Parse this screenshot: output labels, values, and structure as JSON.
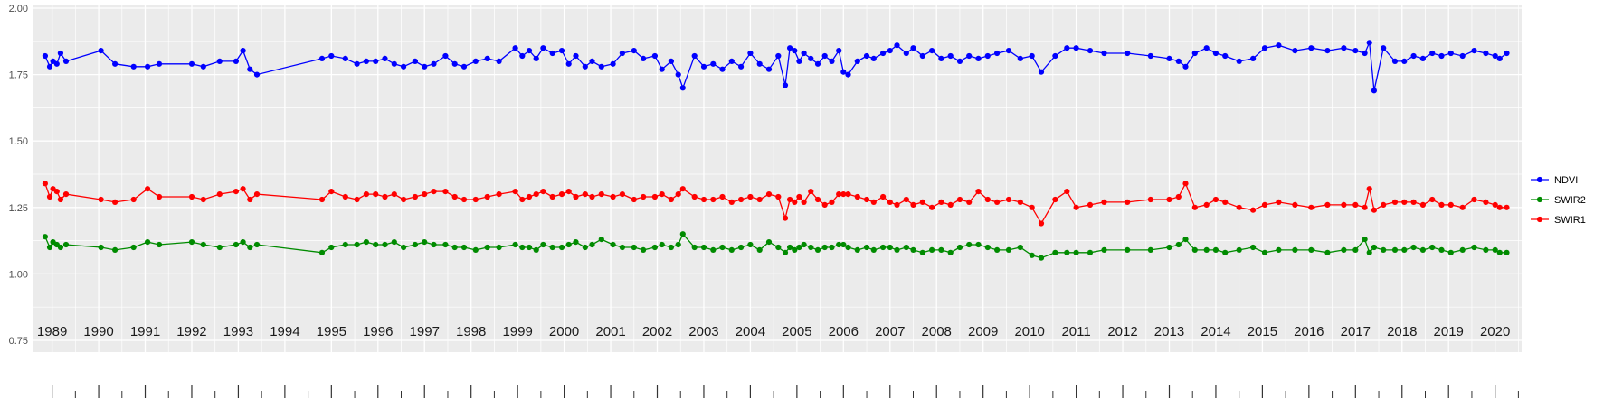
{
  "colors": {
    "page_bg": "#ffffff",
    "panel_bg": "#ebebeb",
    "grid_major": "#ffffff",
    "grid_minor": "#f7f7f7",
    "axis_text_y": "#4d4d4d",
    "axis_text_x": "#1a1a1a",
    "tick_mark": "#333333",
    "legend_text": "#000000"
  },
  "legend": {
    "position": "right",
    "items": [
      {
        "label": "NDVI",
        "color": "#0000ff"
      },
      {
        "label": "SWIR2",
        "color": "#008b00"
      },
      {
        "label": "SWIR1",
        "color": "#ff0000"
      }
    ]
  },
  "chart_data": {
    "type": "line",
    "title": "",
    "xlabel": "",
    "ylabel": "",
    "grid": true,
    "legend_position": "right",
    "xlim": [
      1988.58,
      2020.57
    ],
    "ylim": [
      0.75,
      2.0
    ],
    "y_ticks": [
      0.75,
      1.0,
      1.25,
      1.5,
      1.75,
      2.0
    ],
    "y_tick_labels": [
      "0.75",
      "1.00",
      "1.25",
      "1.50",
      "1.75",
      "2.00"
    ],
    "y_minor_ticks": [
      0.875,
      1.125,
      1.375,
      1.625,
      1.875
    ],
    "x_ticks": [
      1989,
      1990,
      1991,
      1992,
      1993,
      1994,
      1995,
      1996,
      1997,
      1998,
      1999,
      2000,
      2001,
      2002,
      2003,
      2004,
      2005,
      2006,
      2007,
      2008,
      2009,
      2010,
      2011,
      2012,
      2013,
      2014,
      2015,
      2016,
      2017,
      2018,
      2019,
      2020
    ],
    "x_tick_labels": [
      "1989",
      "1990",
      "1991",
      "1992",
      "1993",
      "1994",
      "1995",
      "1996",
      "1997",
      "1998",
      "1999",
      "2000",
      "2001",
      "2002",
      "2003",
      "2004",
      "2005",
      "2006",
      "2007",
      "2008",
      "2009",
      "2010",
      "2011",
      "2012",
      "2013",
      "2014",
      "2015",
      "2016",
      "2017",
      "2018",
      "2019",
      "2020"
    ],
    "x": [
      1988.85,
      1988.95,
      1989.02,
      1989.1,
      1989.18,
      1989.3,
      1990.05,
      1990.35,
      1990.75,
      1991.05,
      1991.3,
      1992.0,
      1992.25,
      1992.6,
      1992.95,
      1993.1,
      1993.25,
      1993.4,
      1994.8,
      1995.0,
      1995.3,
      1995.55,
      1995.75,
      1995.95,
      1996.15,
      1996.35,
      1996.55,
      1996.8,
      1997.0,
      1997.2,
      1997.45,
      1997.65,
      1997.85,
      1998.1,
      1998.35,
      1998.6,
      1998.95,
      1999.1,
      1999.25,
      1999.4,
      1999.55,
      1999.75,
      1999.95,
      2000.1,
      2000.25,
      2000.45,
      2000.6,
      2000.8,
      2001.05,
      2001.25,
      2001.5,
      2001.7,
      2001.95,
      2002.1,
      2002.3,
      2002.45,
      2002.55,
      2002.8,
      2003.0,
      2003.2,
      2003.4,
      2003.6,
      2003.8,
      2004.0,
      2004.2,
      2004.4,
      2004.6,
      2004.75,
      2004.85,
      2004.95,
      2005.05,
      2005.15,
      2005.3,
      2005.45,
      2005.6,
      2005.75,
      2005.9,
      2006.0,
      2006.1,
      2006.3,
      2006.5,
      2006.65,
      2006.85,
      2007.0,
      2007.15,
      2007.35,
      2007.5,
      2007.7,
      2007.9,
      2008.1,
      2008.3,
      2008.5,
      2008.7,
      2008.9,
      2009.1,
      2009.3,
      2009.55,
      2009.8,
      2010.05,
      2010.25,
      2010.55,
      2010.8,
      2011.0,
      2011.3,
      2011.6,
      2012.1,
      2012.6,
      2013.0,
      2013.2,
      2013.35,
      2013.55,
      2013.8,
      2014.0,
      2014.2,
      2014.5,
      2014.8,
      2015.05,
      2015.35,
      2015.7,
      2016.05,
      2016.4,
      2016.75,
      2017.0,
      2017.2,
      2017.3,
      2017.4,
      2017.6,
      2017.85,
      2018.05,
      2018.25,
      2018.45,
      2018.65,
      2018.85,
      2019.05,
      2019.3,
      2019.55,
      2019.8,
      2020.0,
      2020.1,
      2020.25
    ],
    "series": [
      {
        "name": "NDVI",
        "color": "#0000ff",
        "values": [
          1.82,
          1.78,
          1.8,
          1.79,
          1.83,
          1.8,
          1.84,
          1.79,
          1.78,
          1.78,
          1.79,
          1.79,
          1.78,
          1.8,
          1.8,
          1.84,
          1.77,
          1.75,
          1.81,
          1.82,
          1.81,
          1.79,
          1.8,
          1.8,
          1.81,
          1.79,
          1.78,
          1.8,
          1.78,
          1.79,
          1.82,
          1.79,
          1.78,
          1.8,
          1.81,
          1.8,
          1.85,
          1.82,
          1.84,
          1.81,
          1.85,
          1.83,
          1.84,
          1.79,
          1.82,
          1.78,
          1.8,
          1.78,
          1.79,
          1.83,
          1.84,
          1.81,
          1.82,
          1.77,
          1.8,
          1.75,
          1.7,
          1.82,
          1.78,
          1.79,
          1.77,
          1.8,
          1.78,
          1.83,
          1.79,
          1.77,
          1.82,
          1.71,
          1.85,
          1.84,
          1.8,
          1.83,
          1.81,
          1.79,
          1.82,
          1.8,
          1.84,
          1.76,
          1.75,
          1.8,
          1.82,
          1.81,
          1.83,
          1.84,
          1.86,
          1.83,
          1.85,
          1.82,
          1.84,
          1.81,
          1.82,
          1.8,
          1.82,
          1.81,
          1.82,
          1.83,
          1.84,
          1.81,
          1.82,
          1.76,
          1.82,
          1.85,
          1.85,
          1.84,
          1.83,
          1.83,
          1.82,
          1.81,
          1.8,
          1.78,
          1.83,
          1.85,
          1.83,
          1.82,
          1.8,
          1.81,
          1.85,
          1.86,
          1.84,
          1.85,
          1.84,
          1.85,
          1.84,
          1.83,
          1.87,
          1.69,
          1.85,
          1.8,
          1.8,
          1.82,
          1.81,
          1.83,
          1.82,
          1.83,
          1.82,
          1.84,
          1.83,
          1.82,
          1.81,
          1.83
        ]
      },
      {
        "name": "SWIR2",
        "color": "#008b00",
        "values": [
          1.14,
          1.1,
          1.12,
          1.11,
          1.1,
          1.11,
          1.1,
          1.09,
          1.1,
          1.12,
          1.11,
          1.12,
          1.11,
          1.1,
          1.11,
          1.12,
          1.1,
          1.11,
          1.08,
          1.1,
          1.11,
          1.11,
          1.12,
          1.11,
          1.11,
          1.12,
          1.1,
          1.11,
          1.12,
          1.11,
          1.11,
          1.1,
          1.1,
          1.09,
          1.1,
          1.1,
          1.11,
          1.1,
          1.1,
          1.09,
          1.11,
          1.1,
          1.1,
          1.11,
          1.12,
          1.1,
          1.11,
          1.13,
          1.11,
          1.1,
          1.1,
          1.09,
          1.1,
          1.11,
          1.1,
          1.11,
          1.15,
          1.1,
          1.1,
          1.09,
          1.1,
          1.09,
          1.1,
          1.11,
          1.09,
          1.12,
          1.1,
          1.08,
          1.1,
          1.09,
          1.1,
          1.11,
          1.1,
          1.09,
          1.1,
          1.1,
          1.11,
          1.11,
          1.1,
          1.09,
          1.1,
          1.09,
          1.1,
          1.1,
          1.09,
          1.1,
          1.09,
          1.08,
          1.09,
          1.09,
          1.08,
          1.1,
          1.11,
          1.11,
          1.1,
          1.09,
          1.09,
          1.1,
          1.07,
          1.06,
          1.08,
          1.08,
          1.08,
          1.08,
          1.09,
          1.09,
          1.09,
          1.1,
          1.11,
          1.13,
          1.09,
          1.09,
          1.09,
          1.08,
          1.09,
          1.1,
          1.08,
          1.09,
          1.09,
          1.09,
          1.08,
          1.09,
          1.09,
          1.13,
          1.08,
          1.1,
          1.09,
          1.09,
          1.09,
          1.1,
          1.09,
          1.1,
          1.09,
          1.08,
          1.09,
          1.1,
          1.09,
          1.09,
          1.08,
          1.08
        ]
      },
      {
        "name": "SWIR1",
        "color": "#ff0000",
        "values": [
          1.34,
          1.29,
          1.32,
          1.31,
          1.28,
          1.3,
          1.28,
          1.27,
          1.28,
          1.32,
          1.29,
          1.29,
          1.28,
          1.3,
          1.31,
          1.32,
          1.28,
          1.3,
          1.28,
          1.31,
          1.29,
          1.28,
          1.3,
          1.3,
          1.29,
          1.3,
          1.28,
          1.29,
          1.3,
          1.31,
          1.31,
          1.29,
          1.28,
          1.28,
          1.29,
          1.3,
          1.31,
          1.28,
          1.29,
          1.3,
          1.31,
          1.29,
          1.3,
          1.31,
          1.29,
          1.3,
          1.29,
          1.3,
          1.29,
          1.3,
          1.28,
          1.29,
          1.29,
          1.3,
          1.28,
          1.3,
          1.32,
          1.29,
          1.28,
          1.28,
          1.29,
          1.27,
          1.28,
          1.29,
          1.28,
          1.3,
          1.29,
          1.21,
          1.28,
          1.27,
          1.29,
          1.27,
          1.31,
          1.28,
          1.26,
          1.27,
          1.3,
          1.3,
          1.3,
          1.29,
          1.28,
          1.27,
          1.29,
          1.27,
          1.26,
          1.28,
          1.26,
          1.27,
          1.25,
          1.27,
          1.26,
          1.28,
          1.27,
          1.31,
          1.28,
          1.27,
          1.28,
          1.27,
          1.25,
          1.19,
          1.28,
          1.31,
          1.25,
          1.26,
          1.27,
          1.27,
          1.28,
          1.28,
          1.29,
          1.34,
          1.25,
          1.26,
          1.28,
          1.27,
          1.25,
          1.24,
          1.26,
          1.27,
          1.26,
          1.25,
          1.26,
          1.26,
          1.26,
          1.25,
          1.32,
          1.24,
          1.26,
          1.27,
          1.27,
          1.27,
          1.26,
          1.28,
          1.26,
          1.26,
          1.25,
          1.28,
          1.27,
          1.26,
          1.25,
          1.25
        ]
      }
    ]
  }
}
